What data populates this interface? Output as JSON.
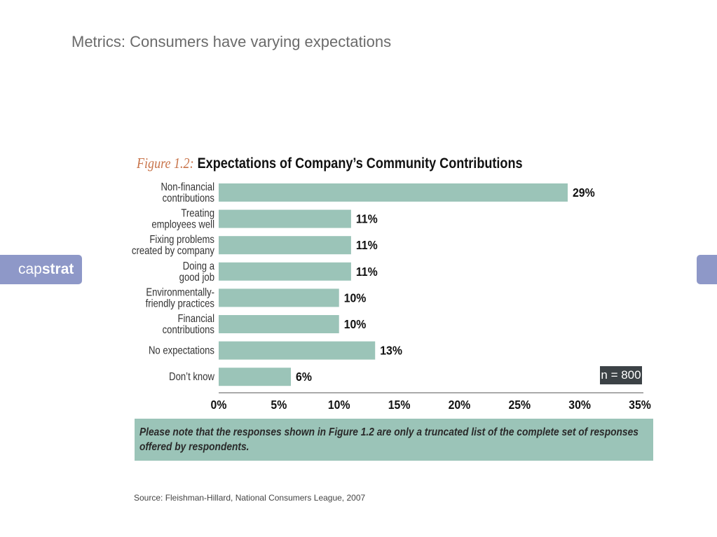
{
  "slide": {
    "title": "Metrics: Consumers have varying expectations",
    "source": "Source: Fleishman-Hillard, National Consumers League, 2007"
  },
  "logo": {
    "part1": "cap",
    "part2": "strat"
  },
  "figure": {
    "number": "Figure 1.2:",
    "title": "Expectations of Company’s Community Contributions",
    "note": "Please note that the responses shown in Figure 1.2 are only a truncated list of the complete set of responses offered by respondents.",
    "sample": "n = 800"
  },
  "colors": {
    "bar": "#9bc4b8",
    "logo_tab": "#8e98c8",
    "badge": "#3c4246"
  },
  "chart_data": {
    "type": "bar",
    "orientation": "horizontal",
    "categories": [
      [
        "Non-financial",
        "contributions"
      ],
      [
        "Treating",
        "employees well"
      ],
      [
        "Fixing problems",
        "created by company"
      ],
      [
        "Doing a",
        "good job"
      ],
      [
        "Environmentally-",
        "friendly practices"
      ],
      [
        "Financial",
        "contributions"
      ],
      [
        "No expectations"
      ],
      [
        "Don’t know"
      ]
    ],
    "values": [
      29,
      11,
      11,
      11,
      10,
      10,
      13,
      6
    ],
    "value_labels": [
      "29%",
      "11%",
      "11%",
      "11%",
      "10%",
      "10%",
      "13%",
      "6%"
    ],
    "xlim": [
      0,
      35
    ],
    "xticks": [
      "0%",
      "5%",
      "10%",
      "15%",
      "20%",
      "25%",
      "30%",
      "35%"
    ],
    "grid": false
  }
}
